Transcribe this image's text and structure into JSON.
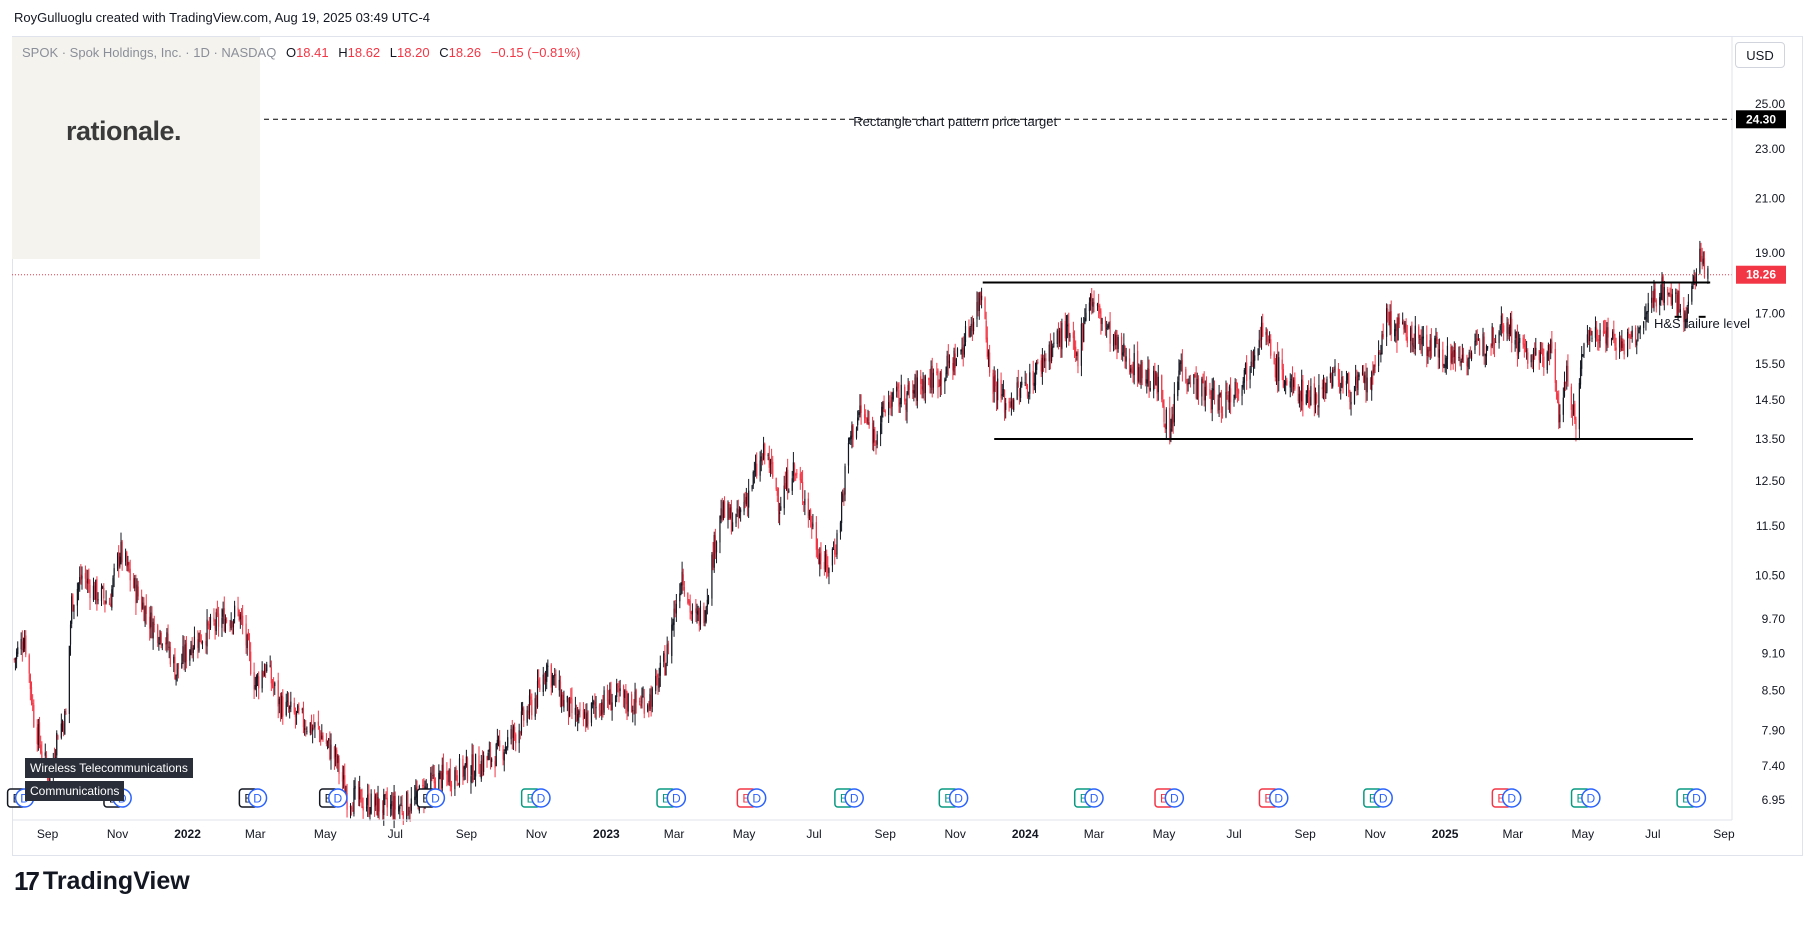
{
  "header": {
    "credit": "RoyGulluoglu created with TradingView.com, Aug 19, 2025 03:49 UTC-4"
  },
  "legend": {
    "symbol": "SPOK · Spok Holdings, Inc. · 1D · NASDAQ",
    "o_label": "O",
    "o": "18.41",
    "h_label": "H",
    "h": "18.62",
    "l_label": "L",
    "l": "18.20",
    "c_label": "C",
    "c": "18.26",
    "change": "−0.15 (−0.81%)"
  },
  "watermark": {
    "text": "rationale."
  },
  "currency_button": "USD",
  "industry_tags": [
    "Wireless Telecommunications",
    "Communications"
  ],
  "branding": {
    "logo_mark": "17",
    "logo_text": "TradingView"
  },
  "colors": {
    "up": "#131722",
    "down": "#f23645",
    "price_line": "#f23645",
    "earnings": "#131722",
    "dividend": "#2962ff",
    "earnings_miss": "#f23645",
    "earnings_beat": "#089981"
  },
  "chart_data": {
    "type": "candlestick",
    "symbol": "SPOK",
    "interval": "1D",
    "y_scale": "log",
    "ylim": [
      6.8,
      27.5
    ],
    "y_ticks": [
      "25.00",
      "23.00",
      "21.00",
      "19.00",
      "17.00",
      "15.50",
      "14.50",
      "13.50",
      "12.50",
      "11.50",
      "10.50",
      "9.70",
      "9.10",
      "8.50",
      "7.90",
      "7.40",
      "6.95"
    ],
    "x_ticks": [
      "Sep",
      "Nov",
      "2022",
      "Mar",
      "May",
      "Jul",
      "Sep",
      "Nov",
      "2023",
      "Mar",
      "May",
      "Jul",
      "Sep",
      "Nov",
      "2024",
      "Mar",
      "May",
      "Jul",
      "Sep",
      "Nov",
      "2025",
      "Mar",
      "May",
      "Jul",
      "Sep"
    ],
    "x_range": [
      "2021-08-01",
      "2025-09-08"
    ],
    "price_path": [
      [
        "2021-08-03",
        9.0
      ],
      [
        "2021-08-12",
        9.4
      ],
      [
        "2021-08-20",
        8.1
      ],
      [
        "2021-08-27",
        7.6
      ],
      [
        "2021-09-03",
        7.2
      ],
      [
        "2021-09-10",
        7.9
      ],
      [
        "2021-09-17",
        8.1
      ],
      [
        "2021-09-22",
        10.0
      ],
      [
        "2021-10-01",
        10.5
      ],
      [
        "2021-10-12",
        10.2
      ],
      [
        "2021-10-25",
        10.0
      ],
      [
        "2021-11-03",
        11.0
      ],
      [
        "2021-11-15",
        10.3
      ],
      [
        "2021-12-01",
        9.6
      ],
      [
        "2021-12-12",
        9.4
      ],
      [
        "2021-12-22",
        8.8
      ],
      [
        "2022-01-05",
        9.3
      ],
      [
        "2022-01-20",
        9.5
      ],
      [
        "2022-02-01",
        9.7
      ],
      [
        "2022-02-15",
        9.8
      ],
      [
        "2022-03-01",
        8.6
      ],
      [
        "2022-03-10",
        8.9
      ],
      [
        "2022-03-22",
        8.3
      ],
      [
        "2022-04-05",
        8.1
      ],
      [
        "2022-04-25",
        7.9
      ],
      [
        "2022-05-10",
        7.5
      ],
      [
        "2022-05-20",
        7.0
      ],
      [
        "2022-06-10",
        6.9
      ],
      [
        "2022-06-25",
        6.85
      ],
      [
        "2022-07-15",
        6.9
      ],
      [
        "2022-08-05",
        7.2
      ],
      [
        "2022-08-20",
        7.3
      ],
      [
        "2022-09-10",
        7.4
      ],
      [
        "2022-09-30",
        7.6
      ],
      [
        "2022-10-15",
        7.9
      ],
      [
        "2022-11-01",
        8.4
      ],
      [
        "2022-11-10",
        8.9
      ],
      [
        "2022-11-25",
        8.3
      ],
      [
        "2022-12-10",
        8.0
      ],
      [
        "2022-12-25",
        8.3
      ],
      [
        "2023-01-10",
        8.4
      ],
      [
        "2023-01-25",
        8.3
      ],
      [
        "2023-02-10",
        8.4
      ],
      [
        "2023-02-22",
        9.0
      ],
      [
        "2023-03-08",
        10.6
      ],
      [
        "2023-03-18",
        9.6
      ],
      [
        "2023-03-28",
        9.9
      ],
      [
        "2023-04-10",
        11.8
      ],
      [
        "2023-04-25",
        11.6
      ],
      [
        "2023-05-10",
        12.6
      ],
      [
        "2023-05-20",
        13.2
      ],
      [
        "2023-06-01",
        12.0
      ],
      [
        "2023-06-12",
        12.8
      ],
      [
        "2023-06-22",
        12.2
      ],
      [
        "2023-07-05",
        11.0
      ],
      [
        "2023-07-12",
        10.6
      ],
      [
        "2023-07-22",
        11.3
      ],
      [
        "2023-08-01",
        13.5
      ],
      [
        "2023-08-10",
        14.2
      ],
      [
        "2023-08-22",
        13.6
      ],
      [
        "2023-09-05",
        14.5
      ],
      [
        "2023-09-20",
        14.6
      ],
      [
        "2023-10-05",
        15.0
      ],
      [
        "2023-10-20",
        15.2
      ],
      [
        "2023-11-05",
        15.8
      ],
      [
        "2023-11-20",
        17.2
      ],
      [
        "2023-11-25",
        17.9
      ],
      [
        "2023-12-01",
        15.2
      ],
      [
        "2023-12-15",
        14.4
      ],
      [
        "2024-01-05",
        15.0
      ],
      [
        "2024-01-20",
        15.8
      ],
      [
        "2024-02-05",
        16.5
      ],
      [
        "2024-02-15",
        15.6
      ],
      [
        "2024-02-25",
        17.6
      ],
      [
        "2024-03-05",
        17.0
      ],
      [
        "2024-03-20",
        16.0
      ],
      [
        "2024-04-10",
        15.3
      ],
      [
        "2024-04-28",
        14.8
      ],
      [
        "2024-05-06",
        13.4
      ],
      [
        "2024-05-15",
        15.5
      ],
      [
        "2024-06-01",
        14.8
      ],
      [
        "2024-06-20",
        14.4
      ],
      [
        "2024-07-10",
        15.2
      ],
      [
        "2024-07-25",
        16.6
      ],
      [
        "2024-08-05",
        15.5
      ],
      [
        "2024-08-20",
        14.8
      ],
      [
        "2024-09-10",
        14.6
      ],
      [
        "2024-09-25",
        15.2
      ],
      [
        "2024-10-10",
        14.8
      ],
      [
        "2024-10-30",
        15.0
      ],
      [
        "2024-11-10",
        16.8
      ],
      [
        "2024-11-25",
        16.4
      ],
      [
        "2024-12-15",
        16.1
      ],
      [
        "2025-01-05",
        15.7
      ],
      [
        "2025-01-25",
        15.8
      ],
      [
        "2025-02-10",
        16.3
      ],
      [
        "2025-02-22",
        16.9
      ],
      [
        "2025-03-05",
        16.1
      ],
      [
        "2025-03-20",
        15.6
      ],
      [
        "2025-04-03",
        15.9
      ],
      [
        "2025-04-10",
        14.2
      ],
      [
        "2025-04-18",
        15.2
      ],
      [
        "2025-04-25",
        13.7
      ],
      [
        "2025-05-02",
        16.3
      ],
      [
        "2025-05-20",
        16.5
      ],
      [
        "2025-06-05",
        16.0
      ],
      [
        "2025-06-20",
        16.4
      ],
      [
        "2025-07-01",
        17.5
      ],
      [
        "2025-07-10",
        17.8
      ],
      [
        "2025-07-20",
        17.4
      ],
      [
        "2025-08-01",
        17.0
      ],
      [
        "2025-08-08",
        18.6
      ],
      [
        "2025-08-12",
        18.8
      ],
      [
        "2025-08-18",
        18.26
      ]
    ],
    "last_price": "18.26",
    "target_price": "24.30",
    "annotations": [
      {
        "text": "Rectangle chart pattern price target",
        "date": "2023-11-01",
        "price": 24.0
      },
      {
        "text": "H&S failure level",
        "date": "2025-07-02",
        "price": 16.55
      }
    ],
    "lines": [
      {
        "name": "target",
        "price": 24.3,
        "style": "dashed"
      },
      {
        "name": "rectangle-top",
        "price": 18.0,
        "from": "2023-11-25",
        "to": "2025-08-20"
      },
      {
        "name": "rectangle-bottom",
        "price": 13.5,
        "from": "2023-12-05",
        "to": "2025-08-05"
      }
    ],
    "events": [
      {
        "date": "2021-08-05",
        "type": "E"
      },
      {
        "date": "2021-08-12",
        "type": "D"
      },
      {
        "date": "2021-10-28",
        "type": "E"
      },
      {
        "date": "2021-11-05",
        "type": "D"
      },
      {
        "date": "2022-02-23",
        "type": "E"
      },
      {
        "date": "2022-03-03",
        "type": "D"
      },
      {
        "date": "2022-05-04",
        "type": "E"
      },
      {
        "date": "2022-05-12",
        "type": "D"
      },
      {
        "date": "2022-07-28",
        "type": "E"
      },
      {
        "date": "2022-08-05",
        "type": "D"
      },
      {
        "date": "2022-10-27",
        "type": "E",
        "tone": "beat"
      },
      {
        "date": "2022-11-05",
        "type": "D"
      },
      {
        "date": "2023-02-22",
        "type": "E",
        "tone": "beat"
      },
      {
        "date": "2023-03-03",
        "type": "D"
      },
      {
        "date": "2023-05-03",
        "type": "E",
        "tone": "miss"
      },
      {
        "date": "2023-05-12",
        "type": "D"
      },
      {
        "date": "2023-07-27",
        "type": "E",
        "tone": "beat"
      },
      {
        "date": "2023-08-05",
        "type": "D"
      },
      {
        "date": "2023-10-26",
        "type": "E",
        "tone": "beat"
      },
      {
        "date": "2023-11-04",
        "type": "D"
      },
      {
        "date": "2024-02-21",
        "type": "E",
        "tone": "beat"
      },
      {
        "date": "2024-03-01",
        "type": "D"
      },
      {
        "date": "2024-05-01",
        "type": "E",
        "tone": "miss"
      },
      {
        "date": "2024-05-10",
        "type": "D"
      },
      {
        "date": "2024-07-31",
        "type": "E",
        "tone": "miss"
      },
      {
        "date": "2024-08-09",
        "type": "D"
      },
      {
        "date": "2024-10-30",
        "type": "E",
        "tone": "beat"
      },
      {
        "date": "2024-11-08",
        "type": "D"
      },
      {
        "date": "2025-02-19",
        "type": "E",
        "tone": "miss"
      },
      {
        "date": "2025-02-28",
        "type": "D"
      },
      {
        "date": "2025-04-29",
        "type": "E",
        "tone": "beat"
      },
      {
        "date": "2025-05-08",
        "type": "D"
      },
      {
        "date": "2025-07-30",
        "type": "E",
        "tone": "beat"
      },
      {
        "date": "2025-08-08",
        "type": "D"
      }
    ]
  }
}
